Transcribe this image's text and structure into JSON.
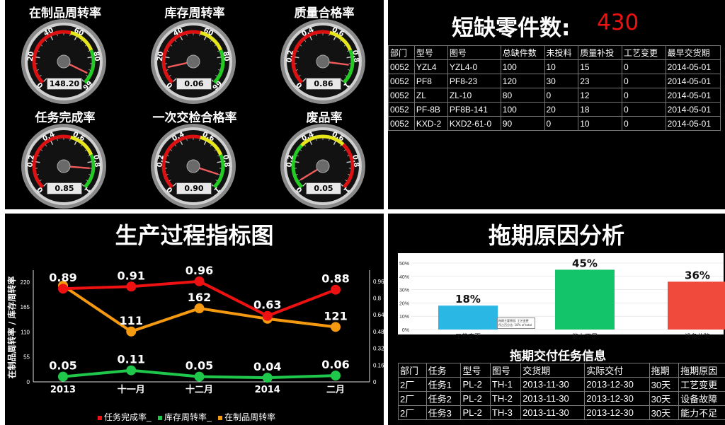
{
  "gauges": [
    {
      "title": "在制品周转率",
      "readout": "148.20",
      "ticks": [
        "0",
        "20",
        "40",
        "60",
        "80",
        "66"
      ],
      "value_fraction": 0.93,
      "band": "high-green"
    },
    {
      "title": "库存周转率",
      "readout": "0.06",
      "ticks": [
        "0",
        "20",
        "40",
        "60",
        "80",
        "66"
      ],
      "value_fraction": 0.12,
      "band": "high-green"
    },
    {
      "title": "质量合格率",
      "readout": "0.86",
      "ticks": [
        "0",
        "0.2",
        "0.4",
        "0.6",
        "0.8",
        "1"
      ],
      "value_fraction": 0.86,
      "band": "high-green"
    },
    {
      "title": "任务完成率",
      "readout": "0.85",
      "ticks": [
        "0",
        "0.2",
        "0.4",
        "0.6",
        "0.8",
        "1"
      ],
      "value_fraction": 0.85,
      "band": "high-green"
    },
    {
      "title": "一次交检合格率",
      "readout": "0.90",
      "ticks": [
        "0",
        "0.2",
        "0.4",
        "0.6",
        "0.8",
        "1"
      ],
      "value_fraction": 0.9,
      "band": "high-green"
    },
    {
      "title": "废品率",
      "readout": "0.05",
      "ticks": [
        "0",
        "0.2",
        "0.4",
        "0.6",
        "0.8",
        "1"
      ],
      "value_fraction": 0.05,
      "band": "low-green"
    }
  ],
  "shortage": {
    "title": "短缺零件数:",
    "count": "430",
    "headers": [
      "部门",
      "型号",
      "图号",
      "总缺件数",
      "未投料",
      "质量补投",
      "工艺变更",
      "最早交货期"
    ],
    "rows": [
      [
        "0052",
        "YZL4",
        "YZL4-0",
        "100",
        "10",
        "15",
        "0",
        "2014-05-01"
      ],
      [
        "0052",
        "PF8",
        "PF8-23",
        "120",
        "30",
        "23",
        "0",
        "2014-05-01"
      ],
      [
        "0052",
        "ZL",
        "ZL-10",
        "80",
        "0",
        "12",
        "0",
        "2014-05-01"
      ],
      [
        "0052",
        "PF-8B",
        "PF8B-141",
        "100",
        "20",
        "18",
        "0",
        "2014-05-01"
      ],
      [
        "0052",
        "KXD-2",
        "KXD2-61-0",
        "90",
        "0",
        "10",
        "0",
        "2014-05-01"
      ]
    ]
  },
  "process": {
    "title": "生产过程指标图",
    "y_left_title": "在制品周转率 / 库存周转率",
    "legend": [
      "任务完成率",
      "库存周转率",
      "在制品周转率"
    ],
    "legend_sep": "_"
  },
  "delay": {
    "title": "拖期原因分析",
    "tooltip": [
      "拖期主要原因: 工艺变更",
      "所占百分比: 18% of total"
    ],
    "table_title": "拖期交付任务信息",
    "headers": [
      "部门",
      "任务",
      "型号",
      "图号",
      "交货期",
      "实际交付",
      "拖期",
      "拖期原因"
    ],
    "rows": [
      [
        "2厂",
        "任务1",
        "PL-2",
        "TH-1",
        "2013-11-30",
        "2013-12-30",
        "30天",
        "工艺变更"
      ],
      [
        "2厂",
        "任务2",
        "PL-2",
        "TH-2",
        "2013-11-30",
        "2013-12-30",
        "30天",
        "设备故障"
      ],
      [
        "2厂",
        "任务3",
        "PL-2",
        "TH-3",
        "2013-11-30",
        "2013-12-30",
        "30天",
        "能力不足"
      ]
    ]
  },
  "chart_data": [
    {
      "type": "line",
      "title": "生产过程指标图",
      "categories": [
        "2013",
        "十一月",
        "十二月",
        "2014",
        "二月"
      ],
      "ylabel": "在制品周转率 / 库存周转率",
      "y_left_ticks": [
        "0",
        "55",
        "110",
        "165",
        "220"
      ],
      "y_right_ticks": [
        "0",
        "0.16",
        "0.32",
        "0.48",
        "0.64",
        "0.8",
        "0.96"
      ],
      "ylim_left": [
        0,
        240
      ],
      "ylim_right": [
        0,
        1.04
      ],
      "series": [
        {
          "name": "任务完成率",
          "axis": "right",
          "color": "#ee1111",
          "values": [
            0.89,
            0.91,
            0.96,
            0.63,
            0.88
          ],
          "labels": [
            "0.89",
            "0.91",
            "0.96",
            "0.63",
            "0.88"
          ]
        },
        {
          "name": "库存周转率",
          "axis": "right",
          "color": "#1fc74a",
          "values": [
            0.05,
            0.11,
            0.05,
            0.04,
            0.06
          ],
          "labels": [
            "0.05",
            "0.11",
            "0.05",
            "0.04",
            "0.06"
          ]
        },
        {
          "name": "在制品周转率",
          "axis": "left",
          "color": "#f59a10",
          "values": [
            212,
            111,
            162,
            139,
            121
          ],
          "labels": [
            "",
            "111",
            "162",
            "",
            "121"
          ]
        }
      ],
      "legend": "bottom",
      "grid": false
    },
    {
      "type": "bar",
      "title": "拖期原因分析",
      "categories": [
        "工艺变更",
        "能力不足",
        "设备故障"
      ],
      "values": [
        18,
        45,
        36
      ],
      "labels": [
        "18%",
        "45%",
        "36%"
      ],
      "y_ticks": [
        "0%",
        "10%",
        "20%",
        "30%",
        "40%",
        "50%"
      ],
      "ylim": [
        0,
        50
      ],
      "colors": [
        "#2ab7e3",
        "#13c46a",
        "#f04a3c"
      ]
    }
  ]
}
